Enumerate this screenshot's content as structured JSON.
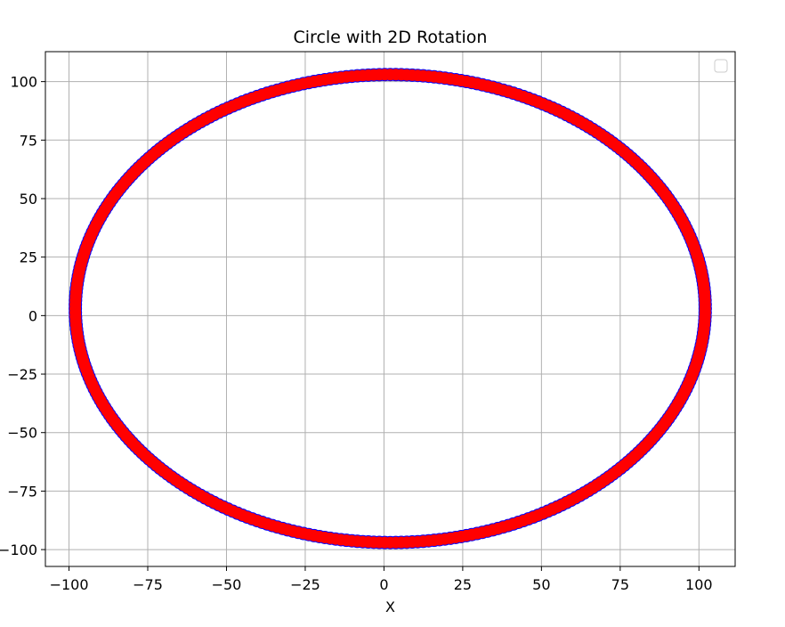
{
  "chart_data": {
    "type": "scatter",
    "title": "Circle with 2D Rotation",
    "xlabel": "X",
    "ylabel": "",
    "xlim": [
      -107.5,
      111.5
    ],
    "ylim": [
      -107.2,
      112.8
    ],
    "xticks": [
      -100,
      -75,
      -50,
      -25,
      0,
      25,
      50,
      75,
      100
    ],
    "yticks": [
      -100,
      -75,
      -50,
      -25,
      0,
      25,
      50,
      75,
      100
    ],
    "xtick_labels": [
      "−100",
      "−75",
      "−50",
      "−25",
      "0",
      "25",
      "50",
      "75",
      "100"
    ],
    "ytick_labels": [
      "−100",
      "−75",
      "−50",
      "−25",
      "0",
      "25",
      "50",
      "75",
      "100"
    ],
    "grid": true,
    "legend": {
      "placement": "upper right",
      "entries": []
    },
    "series": [
      {
        "color": "#0000ff",
        "marker": "o",
        "shape": "ellipse",
        "center": [
          2,
          3
        ],
        "radius_x": 100,
        "radius_y": 100,
        "n_points": 360
      },
      {
        "color": "#ff0000",
        "marker": "o",
        "shape": "ellipse",
        "center": [
          2,
          3
        ],
        "radius_x": 100,
        "radius_y": 100,
        "n_points": 360
      }
    ]
  }
}
